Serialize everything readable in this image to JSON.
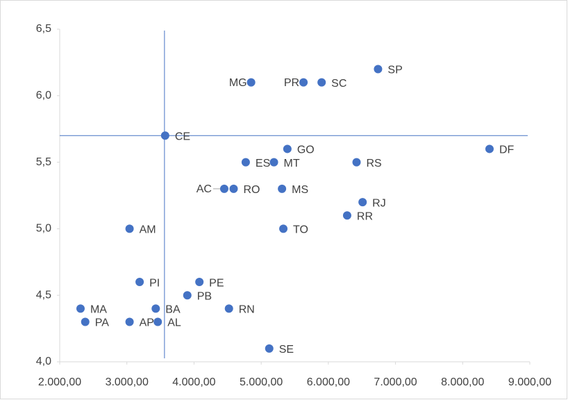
{
  "chart_data": {
    "type": "scatter",
    "series": [
      {
        "color": "#4472c4",
        "labels": [
          "SP",
          "MG",
          "PR",
          "SC",
          "CE",
          "GO",
          "DF",
          "ES",
          "MT",
          "RS",
          "AC",
          "RO",
          "MS",
          "RJ",
          "RR",
          "AM",
          "TO",
          "PI",
          "PE",
          "PB",
          "MA",
          "BA",
          "RN",
          "PA",
          "AP",
          "AL",
          "SE"
        ],
        "x": [
          6740,
          4850,
          5630,
          5900,
          3570,
          5390,
          8400,
          4770,
          5190,
          6420,
          4450,
          4590,
          5310,
          6510,
          6280,
          3040,
          5330,
          3190,
          4080,
          3900,
          2310,
          3430,
          4520,
          2380,
          3040,
          3460,
          5120
        ],
        "y": [
          6.2,
          6.1,
          6.1,
          6.1,
          5.7,
          5.6,
          5.6,
          5.5,
          5.5,
          5.5,
          5.3,
          5.3,
          5.3,
          5.2,
          5.1,
          5.0,
          5.0,
          4.6,
          4.6,
          4.5,
          4.4,
          4.4,
          4.4,
          4.3,
          4.3,
          4.3,
          4.1
        ]
      }
    ],
    "reference_lines": {
      "x": 3560,
      "y": 5.7
    },
    "xlim": [
      2000,
      9000
    ],
    "xticks": [
      {
        "value": 2000,
        "label": "2.000,00"
      },
      {
        "value": 3000,
        "label": "3.000,00"
      },
      {
        "value": 4000,
        "label": "4.000,00"
      },
      {
        "value": 5000,
        "label": "5.000,00"
      },
      {
        "value": 6000,
        "label": "6.000,00"
      },
      {
        "value": 7000,
        "label": "7.000,00"
      },
      {
        "value": 8000,
        "label": "8.000,00"
      },
      {
        "value": 9000,
        "label": "9.000,00"
      }
    ],
    "ylim": [
      4.0,
      6.5
    ],
    "yticks": [
      {
        "value": 4.0,
        "label": "4,0"
      },
      {
        "value": 4.5,
        "label": "4,5"
      },
      {
        "value": 5.0,
        "label": "5,0"
      },
      {
        "value": 5.5,
        "label": "5,5"
      },
      {
        "value": 6.0,
        "label": "6,0"
      },
      {
        "value": 6.5,
        "label": "6,5"
      }
    ]
  }
}
